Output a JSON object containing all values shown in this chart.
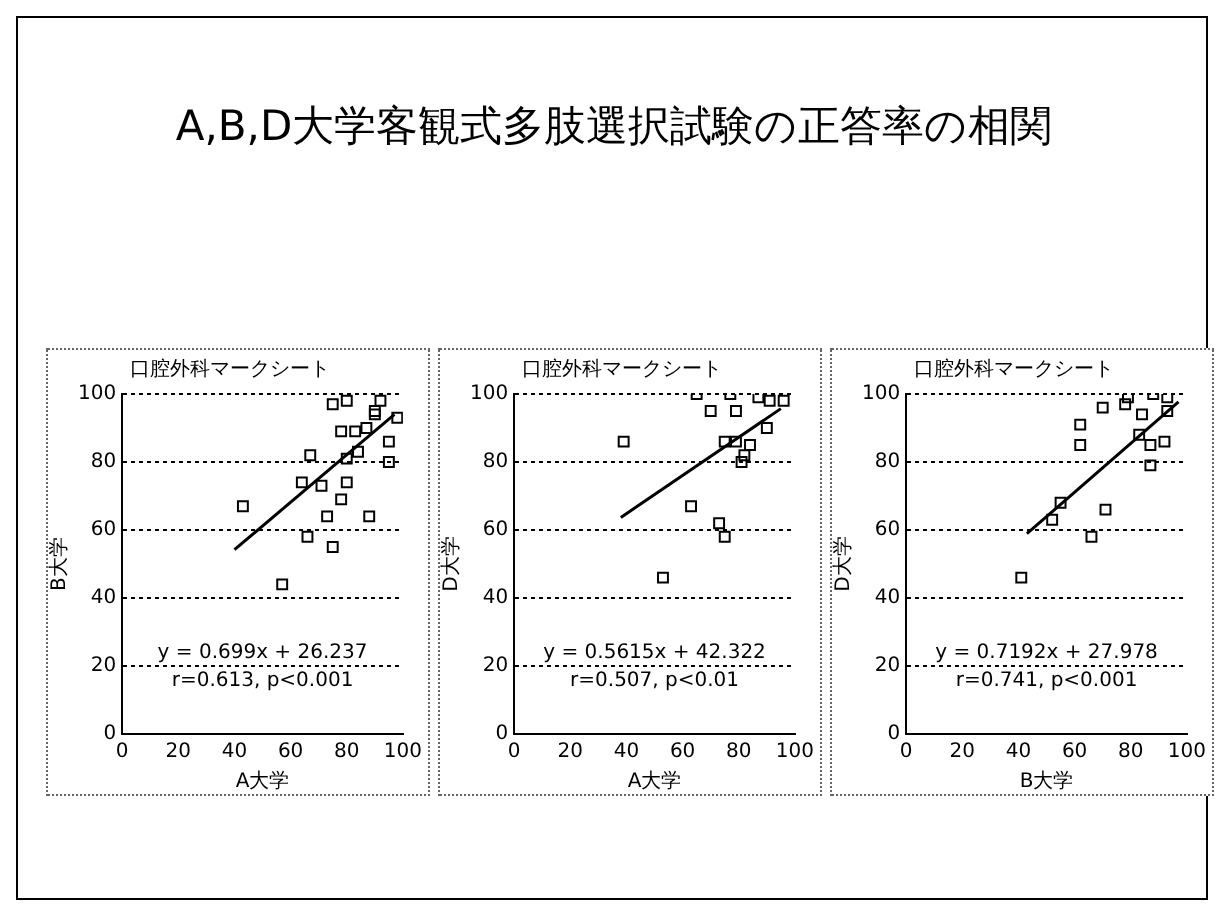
{
  "chart_data": [
    {
      "type": "other",
      "title": "A,B,D大学客観式多肢選択試験の正答率の相関"
    },
    {
      "type": "scatter",
      "title": "口腔外科マークシート",
      "xlabel": "A大学",
      "ylabel": "B大学",
      "xlim": [
        0,
        100
      ],
      "ylim": [
        0,
        100
      ],
      "xticks": [
        0,
        20,
        40,
        60,
        80,
        100
      ],
      "yticks": [
        0,
        20,
        40,
        60,
        80,
        100
      ],
      "grid": "y",
      "legend": false,
      "marker": "square",
      "annotations": [
        "y = 0.699x + 26.237",
        "r=0.613, p<0.001"
      ],
      "series": [
        {
          "color": "#000000",
          "x": [
            43,
            67,
            57,
            66,
            75,
            64,
            71,
            73,
            78,
            80,
            88,
            75,
            80,
            90,
            92,
            83,
            87,
            90,
            95,
            95,
            98,
            84,
            78,
            80
          ],
          "values": [
            67,
            82,
            44,
            58,
            55,
            74,
            73,
            64,
            69,
            74,
            64,
            97,
            98,
            95,
            98,
            89,
            90,
            94,
            86,
            80,
            93,
            83,
            89,
            81
          ]
        },
        {
          "type": "line",
          "marker": "none",
          "color": "#000000",
          "x": [
            40,
            97
          ],
          "values": [
            54.2,
            94.0
          ]
        }
      ]
    },
    {
      "type": "scatter",
      "title": "口腔外科マークシート",
      "xlabel": "A大学",
      "ylabel": "D大学",
      "xlim": [
        0,
        100
      ],
      "ylim": [
        0,
        100
      ],
      "xticks": [
        0,
        20,
        40,
        60,
        80,
        100
      ],
      "yticks": [
        0,
        20,
        40,
        60,
        80,
        100
      ],
      "grid": "y",
      "legend": false,
      "marker": "square",
      "annotations": [
        "y = 0.5615x + 42.322",
        "r=0.507, p<0.01"
      ],
      "series": [
        {
          "color": "#000000",
          "x": [
            39,
            53,
            63,
            73,
            75,
            65,
            70,
            77,
            79,
            82,
            79,
            84,
            87,
            91,
            90,
            96,
            75,
            81
          ],
          "values": [
            86,
            46,
            67,
            62,
            58,
            100,
            95,
            100,
            95,
            82,
            86,
            85,
            99,
            98,
            90,
            98,
            86,
            80
          ]
        },
        {
          "type": "line",
          "marker": "none",
          "color": "#000000",
          "x": [
            38,
            95
          ],
          "values": [
            63.7,
            95.7
          ]
        }
      ]
    },
    {
      "type": "scatter",
      "title": "口腔外科マークシート",
      "xlabel": "B大学",
      "ylabel": "D大学",
      "xlim": [
        0,
        100
      ],
      "ylim": [
        0,
        100
      ],
      "xticks": [
        0,
        20,
        40,
        60,
        80,
        100
      ],
      "yticks": [
        0,
        20,
        40,
        60,
        80,
        100
      ],
      "grid": "y",
      "legend": false,
      "marker": "square",
      "annotations": [
        "y = 0.7192x + 27.978",
        "r=0.741, p<0.001"
      ],
      "series": [
        {
          "color": "#000000",
          "x": [
            41,
            55,
            52,
            66,
            71,
            62,
            62,
            70,
            78,
            79,
            84,
            88,
            93,
            92,
            87,
            87,
            83,
            93
          ],
          "values": [
            46,
            68,
            63,
            58,
            66,
            91,
            85,
            96,
            97,
            99,
            94,
            100,
            99,
            86,
            85,
            79,
            88,
            95
          ]
        },
        {
          "type": "line",
          "marker": "none",
          "color": "#000000",
          "x": [
            43,
            97
          ],
          "values": [
            58.9,
            97.7
          ]
        }
      ]
    }
  ]
}
